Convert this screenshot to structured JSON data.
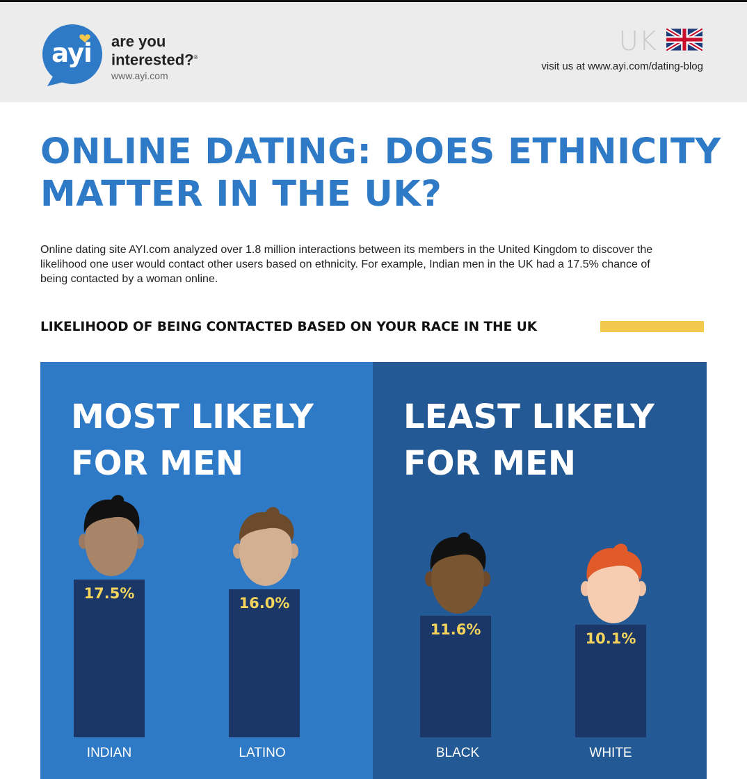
{
  "header": {
    "logo_text": "ayi",
    "tagline_line1": "are you",
    "tagline_line2": "interested?",
    "registered_mark": "®",
    "site": "www.ayi.com",
    "country": "UK",
    "visit_text": "visit us at www.ayi.com/dating-blog"
  },
  "title": "ONLINE DATING: DOES ETHNICITY\nMATTER IN THE UK?",
  "intro": "Online dating site AYI.com analyzed over 1.8 million interactions between its members in the United Kingdom to discover the likelihood one user would contact other users based on ethnicity. For example, Indian men in the UK had a 17.5% chance of being contacted by a woman online.",
  "section_heading": "LIKELIHOOD OF BEING CONTACTED BASED ON YOUR RACE IN THE UK",
  "panels": [
    {
      "title": "MOST LIKELY\nFOR MEN",
      "items": [
        {
          "label": "INDIAN",
          "value_text": "17.5%",
          "value": 17.5
        },
        {
          "label": "LATINO",
          "value_text": "16.0%",
          "value": 16.0
        }
      ]
    },
    {
      "title": "LEAST LIKELY\nFOR MEN",
      "items": [
        {
          "label": "BLACK",
          "value_text": "11.6%",
          "value": 11.6
        },
        {
          "label": "WHITE",
          "value_text": "10.1%",
          "value": 10.1
        }
      ]
    }
  ],
  "colors": {
    "brand_blue": "#2f7ac6",
    "dark_blue": "#235995",
    "bar": "#1b3767",
    "value_text": "#f6d55c",
    "accent_yellow": "#f2c94c"
  }
}
